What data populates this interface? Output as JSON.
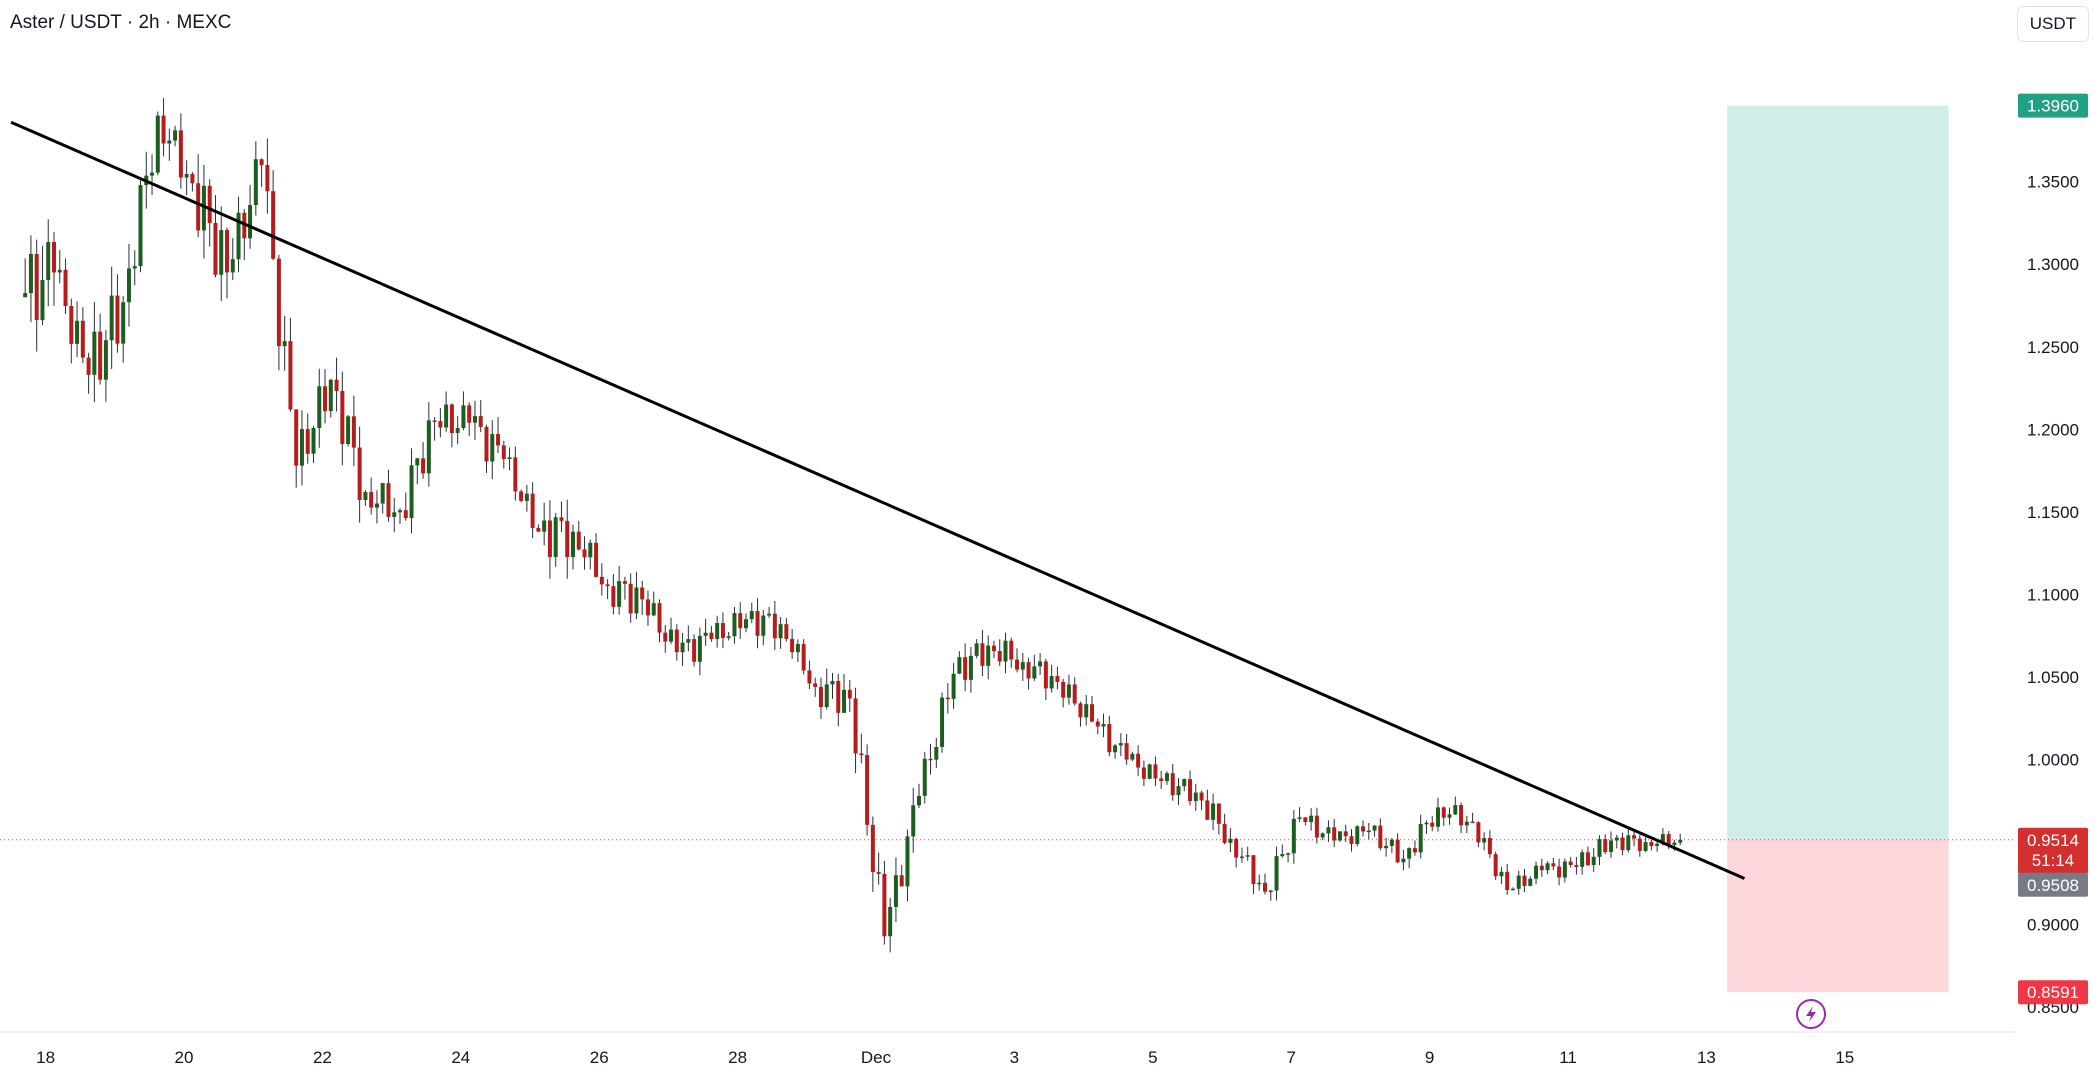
{
  "header": {
    "title": "Aster / USDT · 2h · MEXC",
    "currency_button": "USDT"
  },
  "colors": {
    "up": "#089981",
    "down": "#f23645",
    "candle_up_body": "#1b5e20",
    "candle_down_body": "#b71c1c",
    "target_zone": "#d1ede8",
    "stop_zone": "#fbd7dc",
    "target_tag": "#22a085",
    "stop_tag": "#f23645",
    "price_tag": "#d32f2f",
    "prev_close_tag": "#787b86",
    "trendline": "#000000"
  },
  "chart_data": {
    "type": "candlestick",
    "symbol": "Aster / USDT",
    "interval": "2h",
    "exchange": "MEXC",
    "y_axis": {
      "ylim": [
        0.835,
        1.46
      ],
      "ticks": [
        "1.3500",
        "1.3000",
        "1.2500",
        "1.2000",
        "1.1500",
        "1.1000",
        "1.0500",
        "1.0000",
        "0.9000",
        "0.8500"
      ]
    },
    "x_axis": {
      "ticks": [
        "18",
        "20",
        "22",
        "24",
        "26",
        "28",
        "Dec",
        "3",
        "5",
        "7",
        "9",
        "11",
        "13",
        "15"
      ],
      "tick_index": [
        -0.3,
        3.7,
        7.7,
        11.7,
        15.7,
        19.7,
        23.7,
        27.7,
        31.7,
        35.7,
        39.7,
        43.7,
        47.7,
        51.7
      ]
    },
    "trendline": {
      "from": [
        -1.3,
        1.386
      ],
      "to": [
        48.8,
        0.928
      ]
    },
    "position": {
      "type": "long",
      "entry": 0.9514,
      "target": 1.396,
      "stop": 0.8591,
      "start_index": 48.3,
      "end_index": 54.7
    },
    "price_labels": {
      "target": "1.3960",
      "last": "0.9514",
      "countdown": "51:14",
      "prev_close": "0.9508",
      "stop": "0.8591"
    },
    "series": [
      {
        "values": [
          1.295,
          1.233,
          1.277,
          1.39,
          1.349,
          1.295,
          1.36,
          1.178,
          1.23,
          1.162,
          1.151,
          1.205,
          1.204,
          1.182,
          1.138,
          1.138,
          1.105,
          1.097,
          1.065,
          1.073,
          1.085,
          1.082,
          1.044,
          1.037,
          0.893,
          0.978,
          1.052,
          1.069,
          1.059,
          1.047,
          1.023,
          1.0,
          0.987,
          0.98,
          0.952,
          0.92,
          0.965,
          0.951,
          0.957,
          0.94,
          0.971,
          0.962,
          0.921,
          0.933,
          0.935,
          0.951,
          0.95,
          0.9514
        ]
      }
    ]
  }
}
